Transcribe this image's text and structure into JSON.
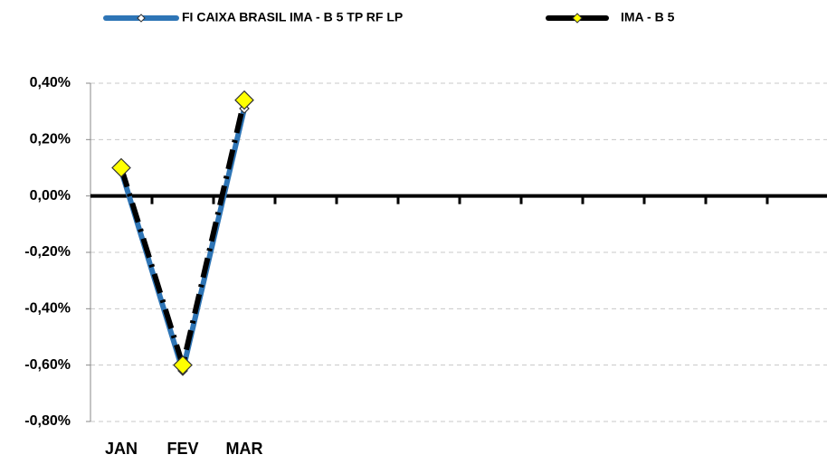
{
  "chart_data": {
    "type": "line",
    "categories": [
      "JAN",
      "FEV",
      "MAR",
      null,
      null,
      null,
      null,
      null,
      null,
      null,
      null,
      null
    ],
    "series": [
      {
        "name": "FI CAIXA BRASIL IMA - B 5 TP RF LP",
        "color": "#2e75b6",
        "marker_color": "#ffffff",
        "values": [
          0.09,
          -0.62,
          0.31,
          null,
          null,
          null,
          null,
          null,
          null,
          null,
          null,
          null
        ]
      },
      {
        "name": "IMA - B 5",
        "color": "#000000",
        "marker_color": "#ffff00",
        "dashed": true,
        "values": [
          0.1,
          -0.6,
          0.34,
          null,
          null,
          null,
          null,
          null,
          null,
          null,
          null,
          null
        ]
      }
    ],
    "ylim": [
      -0.8,
      0.4
    ],
    "yticks": [
      {
        "value": -0.8,
        "label": "-0,80%"
      },
      {
        "value": -0.6,
        "label": "-0,60%"
      },
      {
        "value": -0.4,
        "label": "-0,40%"
      },
      {
        "value": -0.2,
        "label": "-0,20%"
      },
      {
        "value": 0,
        "label": "0,00%"
      },
      {
        "value": 0.2,
        "label": "0,20%"
      },
      {
        "value": 0.4,
        "label": "0,40%"
      }
    ],
    "grid": true,
    "legend": "top"
  }
}
